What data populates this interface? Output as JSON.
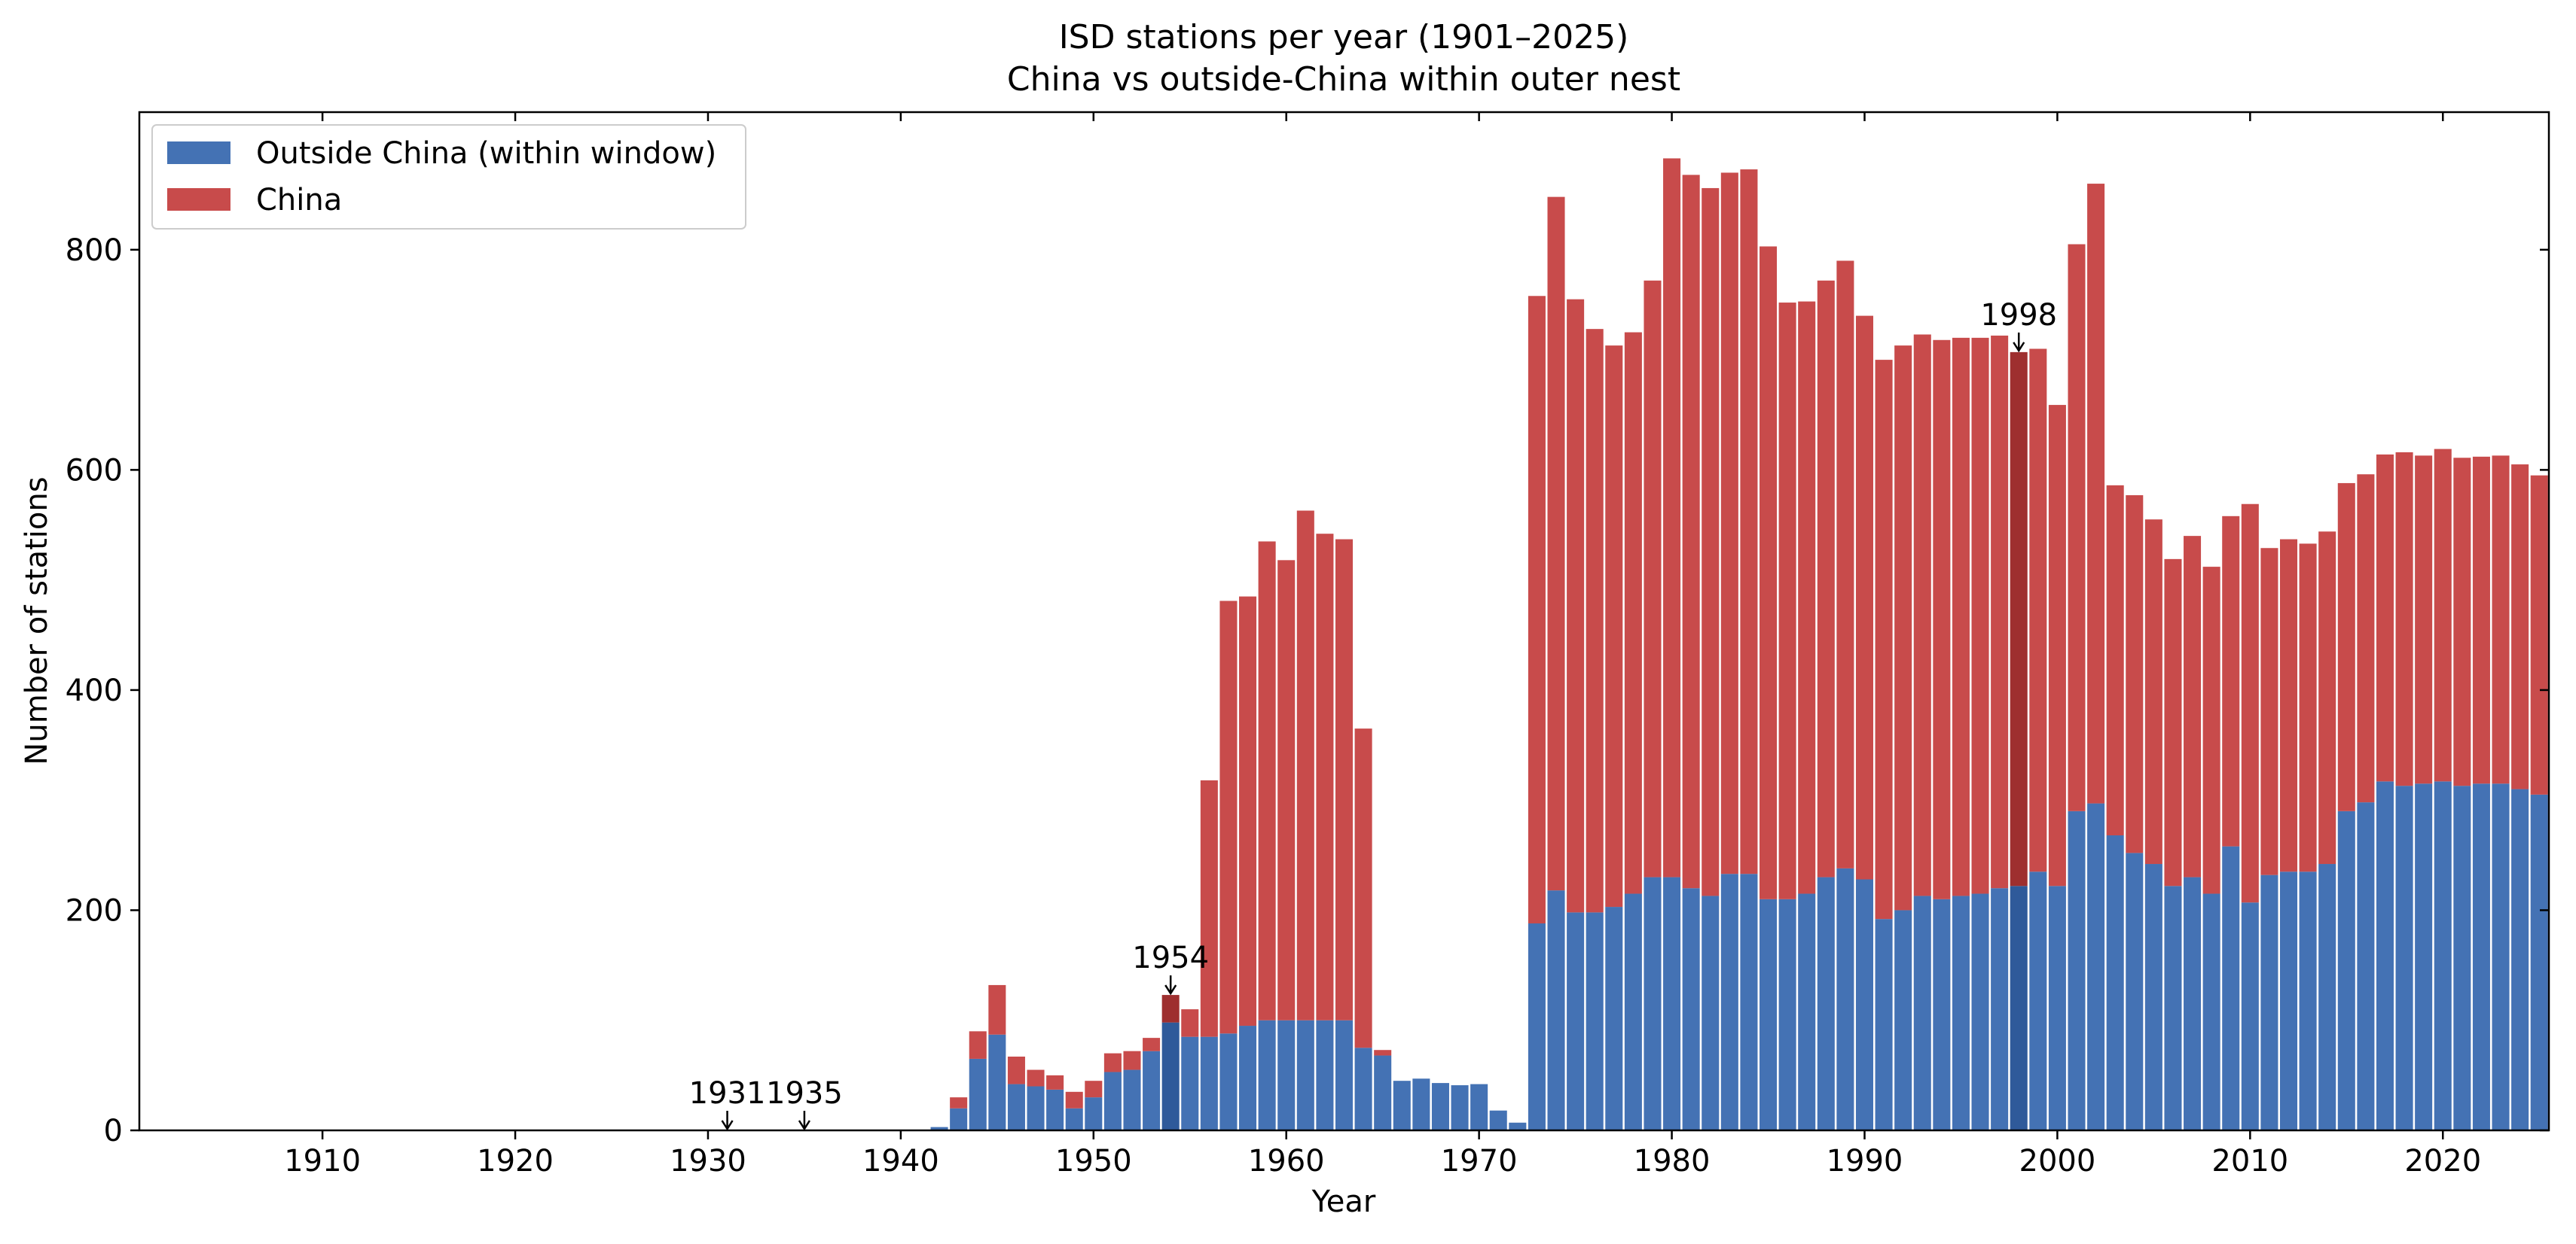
{
  "chart_data": {
    "type": "bar",
    "stacked": true,
    "title": "ISD stations per year (1901–2025)",
    "subtitle": "China vs outside-China within outer nest",
    "xlabel": "Year",
    "ylabel": "Number of stations",
    "xlim": [
      1901,
      2025
    ],
    "ylim": [
      0,
      925
    ],
    "xticks": [
      "1910",
      "1920",
      "1930",
      "1940",
      "1950",
      "1960",
      "1970",
      "1980",
      "1990",
      "2000",
      "2010",
      "2020"
    ],
    "yticks": [
      "0",
      "200",
      "400",
      "600",
      "800"
    ],
    "grid": false,
    "legend_position": "top-left",
    "colors": {
      "outside": "#4472b4",
      "china": "#c84b4b",
      "highlight_outside": "#2f5a9a",
      "highlight_china": "#9e2f2f"
    },
    "years": [
      1942,
      1943,
      1944,
      1945,
      1946,
      1947,
      1948,
      1949,
      1950,
      1951,
      1952,
      1953,
      1954,
      1955,
      1956,
      1957,
      1958,
      1959,
      1960,
      1961,
      1962,
      1963,
      1964,
      1965,
      1966,
      1967,
      1968,
      1969,
      1970,
      1971,
      1972,
      1973,
      1974,
      1975,
      1976,
      1977,
      1978,
      1979,
      1980,
      1981,
      1982,
      1983,
      1984,
      1985,
      1986,
      1987,
      1988,
      1989,
      1990,
      1991,
      1992,
      1993,
      1994,
      1995,
      1996,
      1997,
      1998,
      1999,
      2000,
      2001,
      2002,
      2003,
      2004,
      2005,
      2006,
      2007,
      2008,
      2009,
      2010,
      2011,
      2012,
      2013,
      2014,
      2015,
      2016,
      2017,
      2018,
      2019,
      2020,
      2021,
      2022,
      2023,
      2024,
      2025
    ],
    "series": [
      {
        "name": "Outside China (within window)",
        "values": [
          3,
          20,
          65,
          87,
          42,
          40,
          37,
          20,
          30,
          53,
          55,
          72,
          98,
          85,
          85,
          88,
          95,
          100,
          100,
          100,
          100,
          100,
          75,
          68,
          45,
          47,
          43,
          41,
          42,
          18,
          7,
          188,
          218,
          198,
          198,
          203,
          215,
          230,
          230,
          220,
          213,
          233,
          233,
          210,
          210,
          215,
          230,
          238,
          228,
          192,
          200,
          213,
          210,
          213,
          215,
          220,
          222,
          235,
          222,
          290,
          297,
          268,
          252,
          242,
          222,
          230,
          215,
          258,
          207,
          232,
          235,
          235,
          242,
          290,
          298,
          317,
          313,
          315,
          317,
          313,
          315,
          315,
          310,
          305
        ]
      },
      {
        "name": "China",
        "values": [
          0,
          10,
          25,
          45,
          25,
          15,
          13,
          15,
          15,
          17,
          17,
          12,
          25,
          25,
          233,
          393,
          390,
          435,
          418,
          463,
          442,
          437,
          290,
          5,
          0,
          0,
          0,
          0,
          0,
          0,
          0,
          570,
          630,
          557,
          530,
          510,
          510,
          542,
          653,
          648,
          643,
          637,
          640,
          593,
          542,
          538,
          542,
          552,
          512,
          508,
          513,
          510,
          508,
          507,
          505,
          502,
          485,
          475,
          437,
          515,
          563,
          318,
          325,
          313,
          297,
          310,
          297,
          300,
          362,
          297,
          302,
          298,
          302,
          298,
          298,
          297,
          303,
          298,
          302,
          298,
          297,
          298,
          295,
          290
        ]
      }
    ],
    "highlight_years": [
      1954,
      1998
    ],
    "annotations": [
      {
        "label": "1931",
        "year": 1931
      },
      {
        "label": "1935",
        "year": 1935
      },
      {
        "label": "1954",
        "year": 1954
      },
      {
        "label": "1998",
        "year": 1998
      }
    ]
  }
}
